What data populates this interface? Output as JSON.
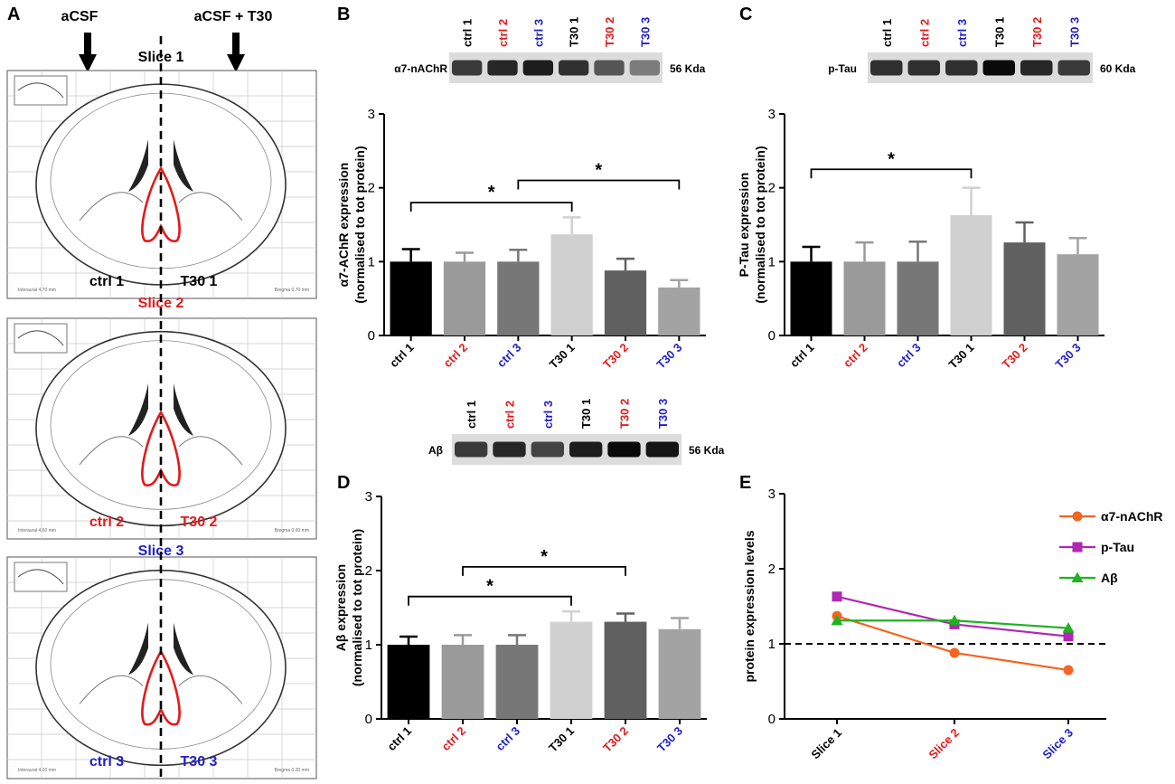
{
  "figure": {
    "panel_letters": [
      "A",
      "B",
      "C",
      "D",
      "E"
    ],
    "panel_a": {
      "top_left": "aCSF",
      "top_right": "aCSF + T30",
      "slices": [
        {
          "title": "Slice 1",
          "title_color": "#000000",
          "left": "ctrl 1",
          "right": "T30 1",
          "label_color": "#000000",
          "atlas_bregma": "Bregma 0.70 mm",
          "atlas_interaural": "Interaural 4.70 mm"
        },
        {
          "title": "Slice 2",
          "title_color": "#e31a1c",
          "left": "ctrl 2",
          "right": "T30 2",
          "label_color": "#e31a1c",
          "atlas_bregma": "Bregma 0.60 mm",
          "atlas_interaural": "Interaural 4.60 mm"
        },
        {
          "title": "Slice 3",
          "title_color": "#1f1fcc",
          "left": "ctrl 3",
          "right": "T30 3",
          "label_color": "#1f1fcc",
          "atlas_bregma": "Bregma 0.20 mm",
          "atlas_interaural": "Interaural 4.20 mm"
        }
      ]
    },
    "lane_labels": [
      "ctrl 1",
      "ctrl 2",
      "ctrl 3",
      "T30 1",
      "T30 2",
      "T30 3"
    ],
    "lane_colors": [
      "#000000",
      "#e31a1c",
      "#1f1fcc",
      "#000000",
      "#e31a1c",
      "#1f1fcc"
    ],
    "blots": [
      {
        "protein": "α7-nAChR",
        "size": "56 Kda",
        "band_intensity": [
          0.75,
          0.85,
          0.9,
          0.8,
          0.6,
          0.4
        ]
      },
      {
        "protein": "p-Tau",
        "size": "60 Kda",
        "band_intensity": [
          0.8,
          0.8,
          0.8,
          1.0,
          0.85,
          0.75
        ]
      },
      {
        "protein": "Aβ",
        "size": "56 Kda",
        "band_intensity": [
          0.75,
          0.85,
          0.7,
          0.9,
          1.0,
          0.95
        ]
      }
    ]
  },
  "chart_data": [
    {
      "panel": "B",
      "type": "bar",
      "categories": [
        "ctrl 1",
        "ctrl 2",
        "ctrl 3",
        "T30 1",
        "T30 2",
        "T30 3"
      ],
      "values": [
        1.0,
        1.0,
        1.0,
        1.37,
        0.88,
        0.65
      ],
      "errors": [
        0.17,
        0.12,
        0.16,
        0.23,
        0.16,
        0.1
      ],
      "bar_colors": [
        "#000000",
        "#9a9a9a",
        "#777777",
        "#d0d0d0",
        "#606060",
        "#a3a3a3"
      ],
      "ylabel": "α7-AChR expression",
      "ylabel2": "(normalised to tot protein)",
      "ylim": [
        0,
        3
      ],
      "yticks": [
        0,
        1,
        2,
        3
      ],
      "significance": [
        {
          "from": 0,
          "to": 3,
          "y": 1.8,
          "label": "*"
        },
        {
          "from": 2,
          "to": 5,
          "y": 2.1,
          "label": "*"
        }
      ]
    },
    {
      "panel": "C",
      "type": "bar",
      "categories": [
        "ctrl 1",
        "ctrl 2",
        "ctrl 3",
        "T30 1",
        "T30 2",
        "T30 3"
      ],
      "values": [
        1.0,
        1.0,
        1.0,
        1.63,
        1.26,
        1.1
      ],
      "errors": [
        0.2,
        0.26,
        0.27,
        0.37,
        0.27,
        0.22
      ],
      "bar_colors": [
        "#000000",
        "#9a9a9a",
        "#777777",
        "#d0d0d0",
        "#606060",
        "#a3a3a3"
      ],
      "ylabel": "P-Tau expression",
      "ylabel2": "(normalised to tot protein)",
      "ylim": [
        0,
        3
      ],
      "yticks": [
        0,
        1,
        2,
        3
      ],
      "significance": [
        {
          "from": 0,
          "to": 3,
          "y": 2.25,
          "label": "*"
        }
      ]
    },
    {
      "panel": "D",
      "type": "bar",
      "categories": [
        "ctrl 1",
        "ctrl 2",
        "ctrl 3",
        "T30 1",
        "T30 2",
        "T30 3"
      ],
      "values": [
        1.0,
        1.0,
        1.0,
        1.31,
        1.31,
        1.21
      ],
      "errors": [
        0.11,
        0.13,
        0.13,
        0.14,
        0.11,
        0.15
      ],
      "bar_colors": [
        "#000000",
        "#9a9a9a",
        "#777777",
        "#d0d0d0",
        "#606060",
        "#a3a3a3"
      ],
      "ylabel": "Aβ expression",
      "ylabel2": "(normalised to tot protein)",
      "ylim": [
        0,
        3
      ],
      "yticks": [
        0,
        1,
        2,
        3
      ],
      "significance": [
        {
          "from": 0,
          "to": 3,
          "y": 1.65,
          "label": "*"
        },
        {
          "from": 1,
          "to": 4,
          "y": 2.05,
          "label": "*"
        }
      ]
    },
    {
      "panel": "E",
      "type": "line",
      "categories": [
        "Slice 1",
        "Slice 2",
        "Slice 3"
      ],
      "category_colors": [
        "#000000",
        "#e31a1c",
        "#1f1fcc"
      ],
      "series": [
        {
          "name": "α7-nAChR",
          "values": [
            1.37,
            0.88,
            0.65
          ],
          "color": "#f26522",
          "marker": "circle"
        },
        {
          "name": "p-Tau",
          "values": [
            1.63,
            1.26,
            1.1
          ],
          "color": "#b026b5",
          "marker": "square"
        },
        {
          "name": "Aβ",
          "values": [
            1.31,
            1.31,
            1.21
          ],
          "color": "#1fb31f",
          "marker": "triangle"
        }
      ],
      "reference_line": 1,
      "ylabel": "protein expression levels",
      "ylim": [
        0,
        3
      ],
      "yticks": [
        0,
        1,
        2,
        3
      ],
      "legend": "top-right"
    }
  ]
}
